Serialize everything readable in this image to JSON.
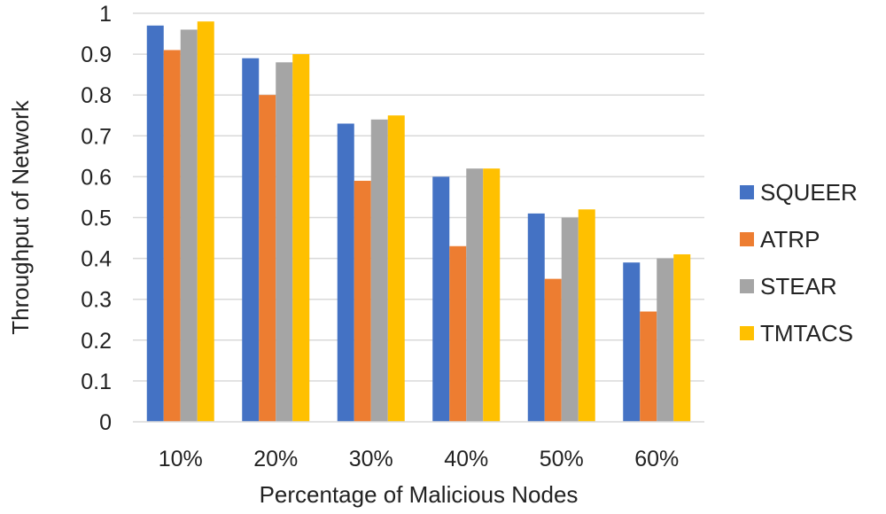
{
  "chart_data": {
    "type": "bar",
    "title": "",
    "xlabel": "Percentage of Malicious Nodes",
    "ylabel": "Throughput of Network",
    "ylim": [
      0,
      1
    ],
    "yticks": [
      "0",
      "0.1",
      "0.2",
      "0.3",
      "0.4",
      "0.5",
      "0.6",
      "0.7",
      "0.8",
      "0.9",
      "1"
    ],
    "grid": true,
    "legend_position": "right",
    "categories": [
      "10%",
      "20%",
      "30%",
      "40%",
      "50%",
      "60%"
    ],
    "series": [
      {
        "name": "SQUEER",
        "color": "#4472C4",
        "values": [
          0.97,
          0.89,
          0.73,
          0.6,
          0.51,
          0.39
        ]
      },
      {
        "name": "ATRP",
        "color": "#ED7D31",
        "values": [
          0.91,
          0.8,
          0.59,
          0.43,
          0.35,
          0.27
        ]
      },
      {
        "name": "STEAR",
        "color": "#A5A5A5",
        "values": [
          0.96,
          0.88,
          0.74,
          0.62,
          0.5,
          0.4
        ]
      },
      {
        "name": "TMTACS",
        "color": "#FFC000",
        "values": [
          0.98,
          0.9,
          0.75,
          0.62,
          0.52,
          0.41
        ]
      }
    ]
  }
}
